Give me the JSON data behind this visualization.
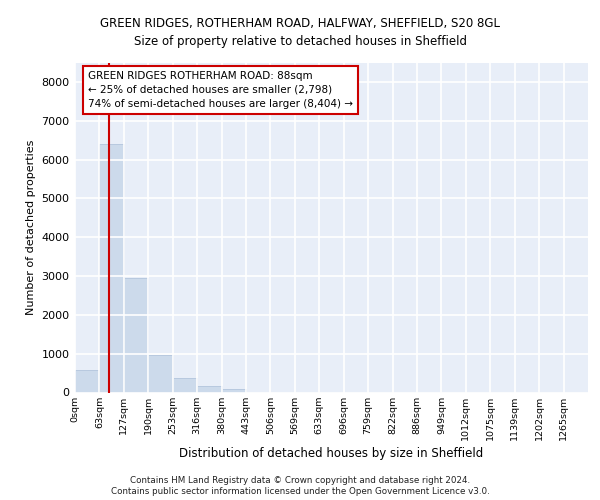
{
  "title1": "GREEN RIDGES, ROTHERHAM ROAD, HALFWAY, SHEFFIELD, S20 8GL",
  "title2": "Size of property relative to detached houses in Sheffield",
  "xlabel": "Distribution of detached houses by size in Sheffield",
  "ylabel": "Number of detached properties",
  "bar_color": "#ccdaeb",
  "bar_edge_color": "#aabfd8",
  "bg_color": "#e8eef8",
  "grid_color": "#ffffff",
  "vline_color": "#cc0000",
  "box_edge_color": "#cc0000",
  "footer1": "Contains HM Land Registry data © Crown copyright and database right 2024.",
  "footer2": "Contains public sector information licensed under the Open Government Licence v3.0.",
  "ann_line1": "GREEN RIDGES ROTHERHAM ROAD: 88sqm",
  "ann_line2": "← 25% of detached houses are smaller (2,798)",
  "ann_line3": "74% of semi-detached houses are larger (8,404) →",
  "property_sqm": 88,
  "bin_width": 63,
  "categories": [
    "0sqm",
    "63sqm",
    "127sqm",
    "190sqm",
    "253sqm",
    "316sqm",
    "380sqm",
    "443sqm",
    "506sqm",
    "569sqm",
    "633sqm",
    "696sqm",
    "759sqm",
    "822sqm",
    "886sqm",
    "949sqm",
    "1012sqm",
    "1075sqm",
    "1139sqm",
    "1202sqm",
    "1265sqm"
  ],
  "values": [
    580,
    6400,
    2950,
    970,
    380,
    160,
    90,
    0,
    0,
    0,
    0,
    0,
    0,
    0,
    0,
    0,
    0,
    0,
    0,
    0,
    0
  ],
  "ylim": [
    0,
    8500
  ],
  "yticks": [
    0,
    1000,
    2000,
    3000,
    4000,
    5000,
    6000,
    7000,
    8000
  ]
}
